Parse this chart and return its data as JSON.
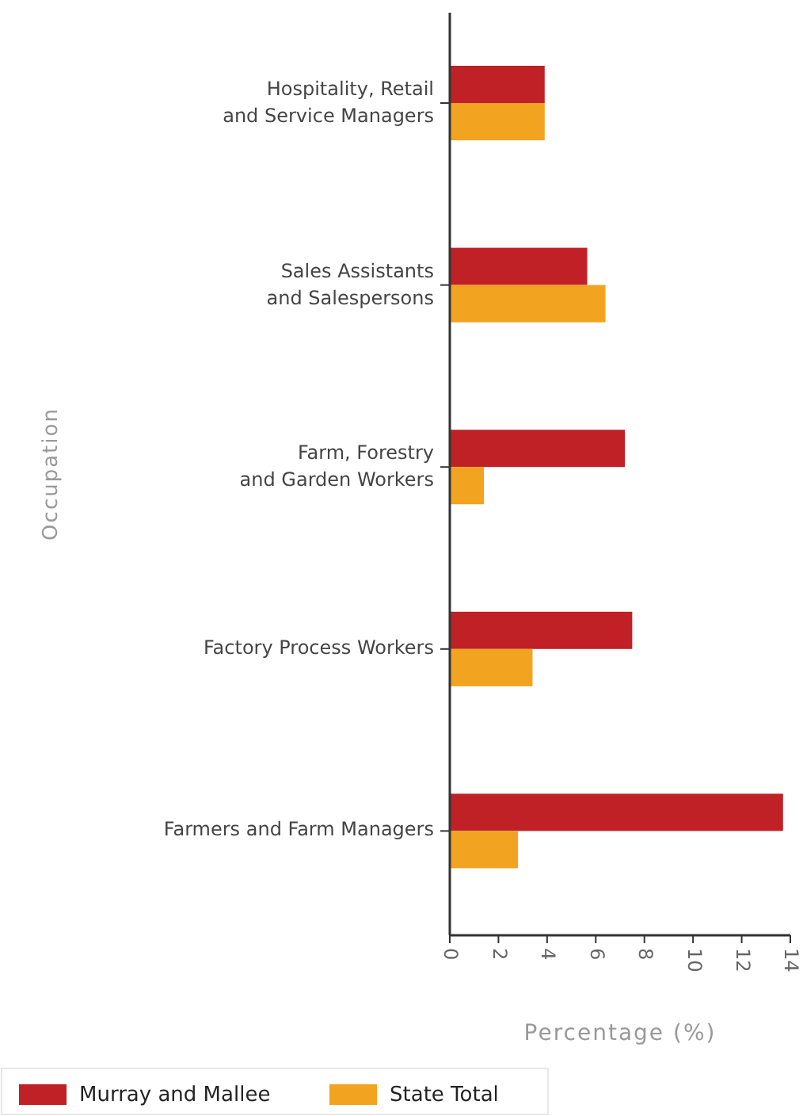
{
  "chart_data": {
    "type": "bar",
    "orientation": "horizontal",
    "xlabel": "Percentage (%)",
    "ylabel": "Occupation",
    "categories": [
      "Hospitality, Retail\nand Service Managers",
      "Sales Assistants\nand Salespersons",
      "Farm, Forestry\nand Garden Workers",
      "Factory Process Workers",
      "Farmers and Farm Managers"
    ],
    "series": [
      {
        "name": "Murray and Mallee",
        "color": "#c02126",
        "values": [
          3.9,
          5.65,
          7.2,
          7.5,
          13.7
        ]
      },
      {
        "name": "State Total",
        "color": "#f2a31f",
        "values": [
          3.9,
          6.4,
          1.4,
          3.4,
          2.8
        ]
      }
    ],
    "xlim": [
      0,
      14
    ],
    "xticks": [
      0,
      2,
      4,
      6,
      8,
      10,
      12,
      14
    ],
    "grid": false,
    "legend": "bottom"
  }
}
